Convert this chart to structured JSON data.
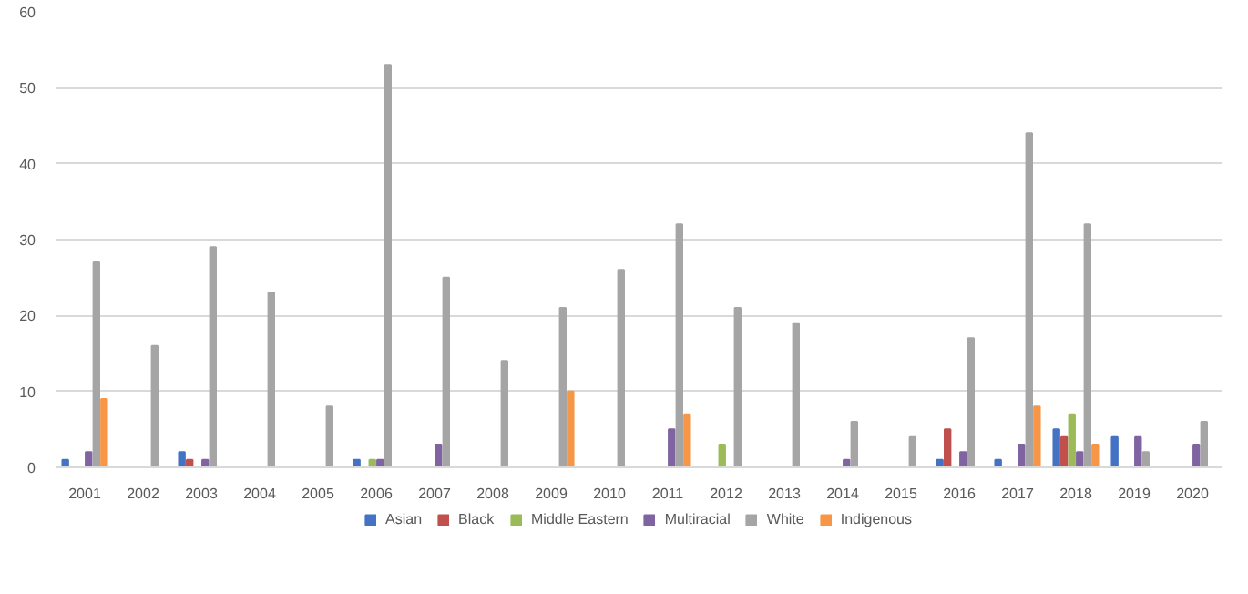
{
  "chart_data": {
    "type": "bar",
    "categories": [
      "2001",
      "2002",
      "2003",
      "2004",
      "2005",
      "2006",
      "2007",
      "2008",
      "2009",
      "2010",
      "2011",
      "2012",
      "2013",
      "2014",
      "2015",
      "2016",
      "2017",
      "2018",
      "2019",
      "2020"
    ],
    "series": [
      {
        "name": "Asian",
        "color": "#4472c4",
        "values": [
          1,
          0,
          2,
          0,
          0,
          1,
          0,
          0,
          0,
          0,
          0,
          0,
          0,
          0,
          0,
          1,
          1,
          5,
          4,
          0
        ]
      },
      {
        "name": "Black",
        "color": "#c0504d",
        "values": [
          0,
          0,
          1,
          0,
          0,
          0,
          0,
          0,
          0,
          0,
          0,
          0,
          0,
          0,
          0,
          5,
          0,
          4,
          0,
          0
        ]
      },
      {
        "name": "Middle Eastern",
        "color": "#9bbb59",
        "values": [
          0,
          0,
          0,
          0,
          0,
          1,
          0,
          0,
          0,
          0,
          0,
          3,
          0,
          0,
          0,
          0,
          0,
          7,
          0,
          0
        ]
      },
      {
        "name": "Multiracial",
        "color": "#8064a2",
        "values": [
          2,
          0,
          1,
          0,
          0,
          1,
          3,
          0,
          0,
          0,
          5,
          0,
          0,
          1,
          0,
          2,
          3,
          2,
          4,
          3
        ]
      },
      {
        "name": "White",
        "color": "#a5a5a5",
        "values": [
          27,
          16,
          29,
          23,
          8,
          53,
          25,
          14,
          21,
          26,
          32,
          21,
          19,
          6,
          4,
          17,
          44,
          32,
          2,
          6
        ]
      },
      {
        "name": "Indigenous",
        "color": "#f79646",
        "values": [
          9,
          0,
          0,
          0,
          0,
          0,
          0,
          0,
          10,
          0,
          7,
          0,
          0,
          0,
          0,
          0,
          8,
          3,
          0,
          0
        ]
      }
    ],
    "ylim": [
      0,
      60
    ],
    "yticks": [
      0,
      10,
      20,
      30,
      40,
      50,
      60
    ],
    "grid": "y",
    "legend": "bottom"
  }
}
